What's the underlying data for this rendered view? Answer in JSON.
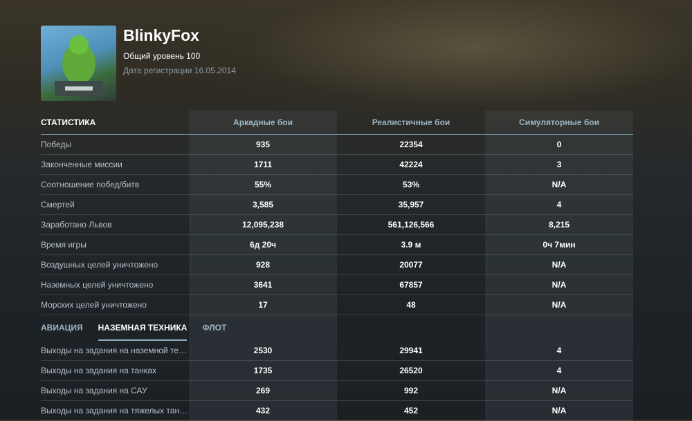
{
  "profile": {
    "name": "BlinkyFox",
    "level": "Общий уровень 100",
    "registered": "Дата регистрации 16.05.2014"
  },
  "stats": {
    "title": "СТАТИСТИКА",
    "columns": [
      "Аркадные бои",
      "Реалистичные бои",
      "Симуляторные бои"
    ],
    "rows": [
      [
        "Победы",
        "935",
        "22354",
        "0"
      ],
      [
        "Законченные миссии",
        "1711",
        "42224",
        "3"
      ],
      [
        "Соотношение побед/битв",
        "55%",
        "53%",
        "N/A"
      ],
      [
        "Смертей",
        "3,585",
        "35,957",
        "4"
      ],
      [
        "Заработано Львов",
        "12,095,238",
        "561,126,566",
        "8,215"
      ],
      [
        "Время игры",
        "6д 20ч",
        "3.9 м",
        "0ч 7мин"
      ],
      [
        "Воздушных целей уничтожено",
        "928",
        "20077",
        "N/A"
      ],
      [
        "Наземных целей уничтожено",
        "3641",
        "67857",
        "N/A"
      ],
      [
        "Морских целей уничтожено",
        "17",
        "48",
        "N/A"
      ]
    ]
  },
  "tabs": [
    {
      "label": "АВИАЦИЯ",
      "active": false
    },
    {
      "label": "НАЗЕМНАЯ ТЕХНИКА",
      "active": true
    },
    {
      "label": "ФЛОТ",
      "active": false
    }
  ],
  "vehicle_stats": {
    "rows": [
      [
        "Выходы на задания на наземной те…",
        "2530",
        "29941",
        "4"
      ],
      [
        "Выходы на задания на танках",
        "1735",
        "26520",
        "4"
      ],
      [
        "Выходы на задания на САУ",
        "269",
        "992",
        "N/A"
      ],
      [
        "Выходы на задания на тяжелых тан…",
        "432",
        "452",
        "N/A"
      ]
    ]
  }
}
